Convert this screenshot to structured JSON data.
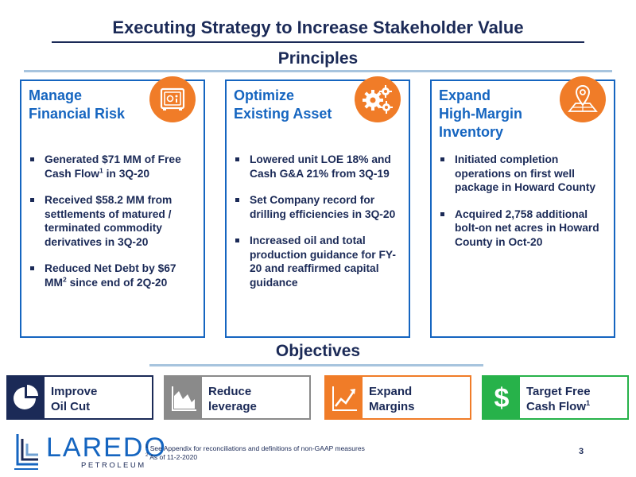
{
  "title": "Executing Strategy to Increase Stakeholder Value",
  "principles_heading": "Principles",
  "principles": [
    {
      "title_lines": [
        "Manage",
        "Financial Risk"
      ],
      "icon": "safe-icon",
      "bullets": [
        [
          "Generated $71 MM of Free Cash Flow",
          "1",
          " in 3Q-20"
        ],
        [
          "Received $58.2 MM from settlements of matured / terminated commodity derivatives in 3Q-20",
          "",
          ""
        ],
        [
          "Reduced Net Debt by $67 MM",
          "2",
          " since end of 2Q-20"
        ]
      ]
    },
    {
      "title_lines": [
        "Optimize",
        "Existing Asset"
      ],
      "icon": "gears-icon",
      "bullets": [
        [
          "Lowered unit LOE 18% and Cash G&A 21% from 3Q-19",
          "",
          ""
        ],
        [
          "Set Company record for drilling efficiencies in 3Q-20",
          "",
          ""
        ],
        [
          "Increased oil and total production guidance for FY-20 and reaffirmed capital guidance",
          "",
          ""
        ]
      ]
    },
    {
      "title_lines": [
        "Expand",
        "High-Margin",
        "Inventory"
      ],
      "icon": "map-pin-icon",
      "bullets": [
        [
          "Initiated completion operations on first well package in Howard County",
          "",
          ""
        ],
        [
          "Acquired 2,758 additional bolt-on net acres in Howard County in Oct-20",
          "",
          ""
        ]
      ]
    }
  ],
  "objectives_heading": "Objectives",
  "objectives": [
    {
      "lines": [
        "Improve",
        "Oil Cut"
      ],
      "sup": "",
      "icon": "pie-chart-icon",
      "color": "#1b2a57"
    },
    {
      "lines": [
        "Reduce",
        "leverage"
      ],
      "sup": "",
      "icon": "area-chart-icon",
      "color": "#8a8a8a"
    },
    {
      "lines": [
        "Expand",
        "Margins"
      ],
      "sup": "",
      "icon": "line-chart-icon",
      "color": "#f07c28"
    },
    {
      "lines": [
        "Target Free",
        "Cash Flow"
      ],
      "sup": "1",
      "icon": "dollar-icon",
      "color": "#27b24a"
    }
  ],
  "logo": {
    "name": "LAREDO",
    "sub": "PETROLEUM"
  },
  "footnotes": [
    {
      "mark": "1",
      "text": " See Appendix for reconciliations and definitions of non-GAAP measures"
    },
    {
      "mark": "2",
      "text": " As of 11-2-2020"
    }
  ],
  "page_number": "3",
  "colors": {
    "navy": "#1b2a57",
    "blue": "#1565c0",
    "orange": "#f07c28",
    "gray": "#8a8a8a",
    "green": "#27b24a",
    "rule": "#a7c4de"
  }
}
